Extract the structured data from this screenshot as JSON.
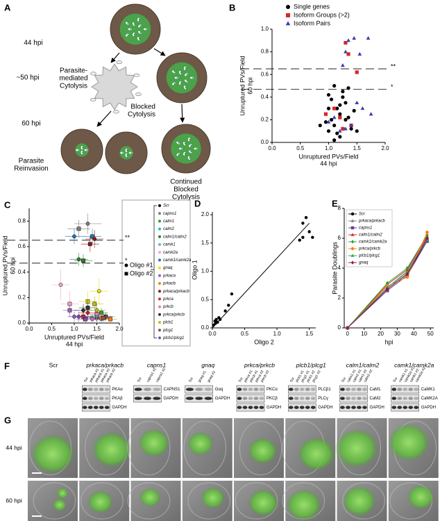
{
  "diagram": {
    "panel": "A",
    "time_labels": [
      "44 hpi",
      "~50 hpi",
      "60 hpi"
    ],
    "nodes": [
      {
        "label": [
          "Parasite-",
          "mediated",
          "Cytolysis"
        ]
      },
      {
        "label": [
          "Blocked",
          "Cytolysis"
        ]
      },
      {
        "label": [
          "Parasite",
          "Reinvasion"
        ]
      },
      {
        "label": [
          "Continued",
          "Blocked",
          "Cytolysis"
        ]
      }
    ]
  },
  "chart_data": [
    {
      "panel": "B",
      "type": "scatter",
      "xlabel": [
        "Unruptured PVs/Field",
        "44 hpi"
      ],
      "ylabel": [
        "Unruptured PVs/Field",
        "60 hpi"
      ],
      "xlim": [
        0,
        2.0
      ],
      "ylim": [
        0,
        1.0
      ],
      "xticks": [
        {
          "value": 0,
          "label": "0.0"
        },
        0.5,
        {
          "value": 1,
          "label": "1.0"
        },
        1.5,
        {
          "value": 2,
          "label": "2.0"
        }
      ],
      "yticks": [
        {
          "value": 0,
          "label": "0.0"
        },
        0.2,
        0.4,
        0.6,
        0.8,
        {
          "value": 1,
          "label": "1.0"
        }
      ],
      "legend": "top-right",
      "reference_lines": [
        {
          "value": 0.65,
          "label": "**"
        },
        {
          "value": 0.47,
          "label": "*"
        }
      ],
      "series": [
        {
          "name": "Single genes",
          "color": "#000000",
          "marker": "circle",
          "x": [
            1.0,
            1.05,
            1.1,
            1.15,
            1.2,
            1.25,
            1.3,
            1.1,
            1.0,
            0.95,
            1.2,
            1.35,
            1.4,
            1.15,
            1.05,
            1.25,
            1.3,
            1.45,
            1.1,
            1.2,
            0.85,
            1.0,
            1.35,
            1.5
          ],
          "y": [
            0.1,
            0.2,
            0.15,
            0.3,
            0.25,
            0.4,
            0.35,
            0.5,
            0.3,
            0.18,
            0.05,
            0.22,
            0.12,
            0.08,
            0.38,
            0.45,
            0.2,
            0.28,
            0.02,
            0.33,
            0.15,
            0.42,
            0.48,
            0.1
          ]
        },
        {
          "name": "Isoform Groups (>2)",
          "color": "#d62728",
          "marker": "square",
          "x": [
            0.95,
            1.3,
            1.35,
            1.25,
            1.5,
            1.2,
            1.4,
            1.1
          ],
          "y": [
            0.25,
            0.88,
            0.78,
            0.12,
            0.62,
            0.22,
            0.15,
            0.3
          ]
        },
        {
          "name": "Isoform Pairs",
          "color": "#3b3bb5",
          "marker": "triangle",
          "x": [
            1.3,
            1.25,
            1.35,
            1.45,
            1.7,
            1.55,
            1.4,
            1.1,
            1.2,
            1.6,
            1.5,
            1.0,
            1.75,
            1.3
          ],
          "y": [
            0.8,
            0.68,
            0.9,
            0.92,
            0.92,
            0.78,
            0.15,
            0.22,
            0.1,
            0.3,
            0.35,
            0.18,
            0.25,
            0.12
          ]
        }
      ]
    },
    {
      "panel": "C",
      "type": "scatter",
      "xlabel": [
        "Unruptured PVs/Field",
        "44 hpi"
      ],
      "ylabel": [
        "Unruptured PVs/Field",
        "60 hpi"
      ],
      "xlim": [
        0,
        2.0
      ],
      "ylim": [
        0,
        0.9
      ],
      "xticks": [
        {
          "value": 0,
          "label": "0.0"
        },
        0.5,
        {
          "value": 1,
          "label": "1.0"
        },
        1.5,
        {
          "value": 2,
          "label": "2.0"
        }
      ],
      "yticks": [
        {
          "value": 0,
          "label": "0.0"
        },
        0.2,
        0.4,
        0.6,
        0.8
      ],
      "legend": "right",
      "reference_lines": [
        {
          "value": 0.65,
          "label": "**"
        },
        {
          "value": 0.47,
          "label": "*"
        }
      ],
      "oligos": [
        {
          "label": "Oligo #1",
          "marker": "circle"
        },
        {
          "label": "Oligo #2",
          "marker": "square"
        }
      ],
      "series": [
        {
          "name": "Scr",
          "color": "#000000",
          "x": [
            1.2,
            1.5
          ],
          "y": [
            0.05,
            0.04
          ],
          "xerr": [
            0.2,
            0.2
          ],
          "yerr": [
            0.03,
            0.03
          ]
        },
        {
          "name": "capns1",
          "color": "#7f7f7f",
          "x": [
            1.3,
            1.1
          ],
          "y": [
            0.78,
            0.74
          ],
          "xerr": [
            0.3,
            0.25
          ],
          "yerr": [
            0.08,
            0.07
          ]
        },
        {
          "name": "calm1",
          "color": "#2ca02c",
          "x": [
            1.5,
            1.6
          ],
          "y": [
            0.06,
            0.08
          ],
          "xerr": [
            0.15,
            0.15
          ],
          "yerr": [
            0.04,
            0.04
          ]
        },
        {
          "name": "calm2",
          "color": "#17becf",
          "x": [
            1.4,
            1.7
          ],
          "y": [
            0.04,
            0.05
          ],
          "xerr": [
            0.15,
            0.2
          ],
          "yerr": [
            0.03,
            0.03
          ]
        },
        {
          "name": "calm1/calm2",
          "color": "#2e7d32",
          "x": [
            1.1,
            1.2
          ],
          "y": [
            0.5,
            0.49
          ],
          "xerr": [
            0.2,
            0.2
          ],
          "yerr": [
            0.05,
            0.05
          ]
        },
        {
          "name": "camk1",
          "color": "#6baed6",
          "x": [
            1.6,
            1.5
          ],
          "y": [
            0.03,
            0.06
          ],
          "xerr": [
            0.2,
            0.15
          ],
          "yerr": [
            0.03,
            0.04
          ]
        },
        {
          "name": "camk2a",
          "color": "#f4a6c6",
          "x": [
            0.7,
            0.9
          ],
          "y": [
            0.3,
            0.15
          ],
          "xerr": [
            0.2,
            0.2
          ],
          "yerr": [
            0.12,
            0.1
          ]
        },
        {
          "name": "camk1/camk2a",
          "color": "#1f77b4",
          "x": [
            1.0,
            1.4
          ],
          "y": [
            0.68,
            0.68
          ],
          "xerr": [
            0.2,
            0.2
          ],
          "yerr": [
            0.06,
            0.06
          ]
        },
        {
          "name": "gnaq",
          "color": "#e8e000",
          "x": [
            1.55,
            1.3
          ],
          "y": [
            0.25,
            0.17
          ],
          "xerr": [
            0.2,
            0.2
          ],
          "yerr": [
            0.1,
            0.08
          ]
        },
        {
          "name": "prkaca",
          "color": "#9467bd",
          "x": [
            1.0,
            0.9
          ],
          "y": [
            0.05,
            0.1
          ],
          "xerr": [
            0.15,
            0.15
          ],
          "yerr": [
            0.04,
            0.05
          ]
        },
        {
          "name": "prkacb",
          "color": "#ff7f0e",
          "x": [
            1.6,
            1.8
          ],
          "y": [
            0.04,
            0.03
          ],
          "xerr": [
            0.2,
            0.15
          ],
          "yerr": [
            0.03,
            0.03
          ]
        },
        {
          "name": "prkaca/prkacb",
          "color": "#8b1a1a",
          "x": [
            1.45,
            1.35
          ],
          "y": [
            0.66,
            0.62
          ],
          "xerr": [
            0.2,
            0.2
          ],
          "yerr": [
            0.07,
            0.06
          ]
        },
        {
          "name": "prkca",
          "color": "#d62728",
          "x": [
            1.3,
            1.2
          ],
          "y": [
            0.08,
            0.05
          ],
          "xerr": [
            0.2,
            0.2
          ],
          "yerr": [
            0.05,
            0.04
          ]
        },
        {
          "name": "prkcb",
          "color": "#e377c2",
          "x": [
            1.4,
            1.5
          ],
          "y": [
            0.03,
            0.07
          ],
          "xerr": [
            0.15,
            0.2
          ],
          "yerr": [
            0.03,
            0.04
          ]
        },
        {
          "name": "prkca/prkcb",
          "color": "#333333",
          "x": [
            1.2,
            1.3
          ],
          "y": [
            0.1,
            0.12
          ],
          "xerr": [
            0.2,
            0.2
          ],
          "yerr": [
            0.05,
            0.06
          ]
        },
        {
          "name": "plcb1",
          "color": "#bcbd22",
          "x": [
            1.5,
            1.45
          ],
          "y": [
            0.1,
            0.15
          ],
          "xerr": [
            0.2,
            0.2
          ],
          "yerr": [
            0.05,
            0.06
          ]
        },
        {
          "name": "plcg1",
          "color": "#8c564b",
          "x": [
            1.7,
            1.65
          ],
          "y": [
            0.05,
            0.04
          ],
          "xerr": [
            0.15,
            0.15
          ],
          "yerr": [
            0.03,
            0.03
          ]
        },
        {
          "name": "plcb1/plcg1",
          "color": "#7b4fb4",
          "x": [
            1.1,
            1.25
          ],
          "y": [
            0.05,
            0.03
          ],
          "xerr": [
            0.2,
            0.2
          ],
          "yerr": [
            0.04,
            0.03
          ]
        }
      ]
    },
    {
      "panel": "D",
      "type": "scatter",
      "xlabel": [
        "Oligo 2"
      ],
      "ylabel": [
        "Oligo 1"
      ],
      "xlim": [
        0,
        1.6
      ],
      "ylim": [
        0,
        2.05
      ],
      "xticks": [
        {
          "value": 0,
          "label": "0.0"
        },
        0.5,
        {
          "value": 1,
          "label": "1.0"
        },
        1.5
      ],
      "yticks": [
        {
          "value": 0,
          "label": "0.0"
        },
        0.5,
        {
          "value": 1,
          "label": "1.0"
        },
        1.5,
        {
          "value": 2,
          "label": "2.0"
        }
      ],
      "color": "#000000",
      "x": [
        0.02,
        0.04,
        0.06,
        0.08,
        0.1,
        0.05,
        0.12,
        0.2,
        0.25,
        0.3,
        1.35,
        1.4,
        1.45,
        1.5,
        1.55,
        1.4
      ],
      "y": [
        0.05,
        0.12,
        0.15,
        0.1,
        0.18,
        0.08,
        0.15,
        0.3,
        0.4,
        0.6,
        1.55,
        1.6,
        1.95,
        1.7,
        1.6,
        1.85
      ],
      "fit_line": {
        "x": [
          0,
          1.5
        ],
        "y": [
          0,
          1.85
        ]
      }
    },
    {
      "panel": "E",
      "type": "line",
      "xlabel": [
        "hpi"
      ],
      "ylabel": [
        "Parasite Doublings"
      ],
      "xlim": [
        -2,
        52
      ],
      "ylim": [
        0,
        8
      ],
      "xticks": [
        0,
        10,
        20,
        30,
        40,
        50
      ],
      "yticks": [
        0,
        2,
        4,
        6,
        8
      ],
      "legend": "top-left",
      "x": [
        0,
        24,
        36,
        48
      ],
      "series": [
        {
          "name": "Scr",
          "color": "#000000",
          "marker": "circle",
          "values": [
            0,
            2.6,
            3.6,
            5.9
          ]
        },
        {
          "name": "prkaca/prkacb",
          "color": "#7f7f7f",
          "marker": "triangle",
          "values": [
            0,
            2.7,
            3.8,
            6.0
          ]
        },
        {
          "name": "capns1",
          "color": "#6a3d9a",
          "marker": "square",
          "values": [
            0,
            2.5,
            3.5,
            5.8
          ]
        },
        {
          "name": "calm1/calm2",
          "color": "#d62728",
          "marker": "triangle",
          "values": [
            0,
            2.9,
            3.9,
            6.1
          ]
        },
        {
          "name": "camk1/camk2a",
          "color": "#2ca02c",
          "marker": "diamond",
          "values": [
            0,
            3.0,
            4.0,
            6.2
          ]
        },
        {
          "name": "prkca/prkcb",
          "color": "#ff7f0e",
          "marker": "circle",
          "values": [
            0,
            2.8,
            3.4,
            6.4
          ]
        },
        {
          "name": "plcb1/plcg1",
          "color": "#31a354",
          "marker": "triangle",
          "values": [
            0,
            2.7,
            3.7,
            5.9
          ]
        },
        {
          "name": "gnaq",
          "color": "#8b1a4a",
          "marker": "diamond",
          "values": [
            0,
            2.6,
            3.6,
            6.0
          ]
        }
      ]
    }
  ],
  "blots": {
    "panel": "F",
    "columns": [
      {
        "header": "Scr"
      },
      {
        "header": "prkaca/prkacb",
        "lanes": [
          "Scr",
          "prkaca #1",
          "prkacb #1",
          "prkaca #2",
          "prkacb #2"
        ],
        "bands": [
          "PKAα",
          "PKAβ",
          "GAPDH"
        ]
      },
      {
        "header": "capns1",
        "lanes": [
          "Scr",
          "capns1 #1",
          "capns1 #2"
        ],
        "bands": [
          "CAPNS1",
          "GAPDH"
        ]
      },
      {
        "header": "gnaq",
        "lanes": [
          "Scr",
          "gnaq #1",
          "gnaq #2"
        ],
        "bands": [
          "Gαq",
          "GAPDH"
        ]
      },
      {
        "header": "prkca/prkcb",
        "lanes": [
          "Scr",
          "prkca #1",
          "prkcb #1",
          "prkca #2",
          "prkcb #2"
        ],
        "bands": [
          "PKCα",
          "PKCβ",
          "GAPDH"
        ]
      },
      {
        "header": "plcb1/plcg1",
        "lanes": [
          "Scr",
          "plcb1 #1",
          "plcg1 #1",
          "plcb1 #2",
          "plcg1 #2"
        ],
        "bands": [
          "PLCβ1",
          "PLCγ",
          "GAPDH"
        ]
      },
      {
        "header": "calm1/calm2",
        "lanes": [
          "Scr",
          "calm1 #1",
          "calm2 #1",
          "calm1 #2",
          "calm2 #2"
        ],
        "bands": [
          "CaM1",
          "CaM2",
          "GAPDH"
        ]
      },
      {
        "header": "camk1/camk2a",
        "lanes": [
          "Scr",
          "camk1 #1",
          "camk2a #1",
          "camk1 #2",
          "camk2a #2"
        ],
        "bands": [
          "CaMK1",
          "CaMK2A",
          "GAPDH"
        ]
      }
    ]
  },
  "images": {
    "panel": "G",
    "rows": [
      "44 hpi",
      "60 hpi"
    ]
  }
}
